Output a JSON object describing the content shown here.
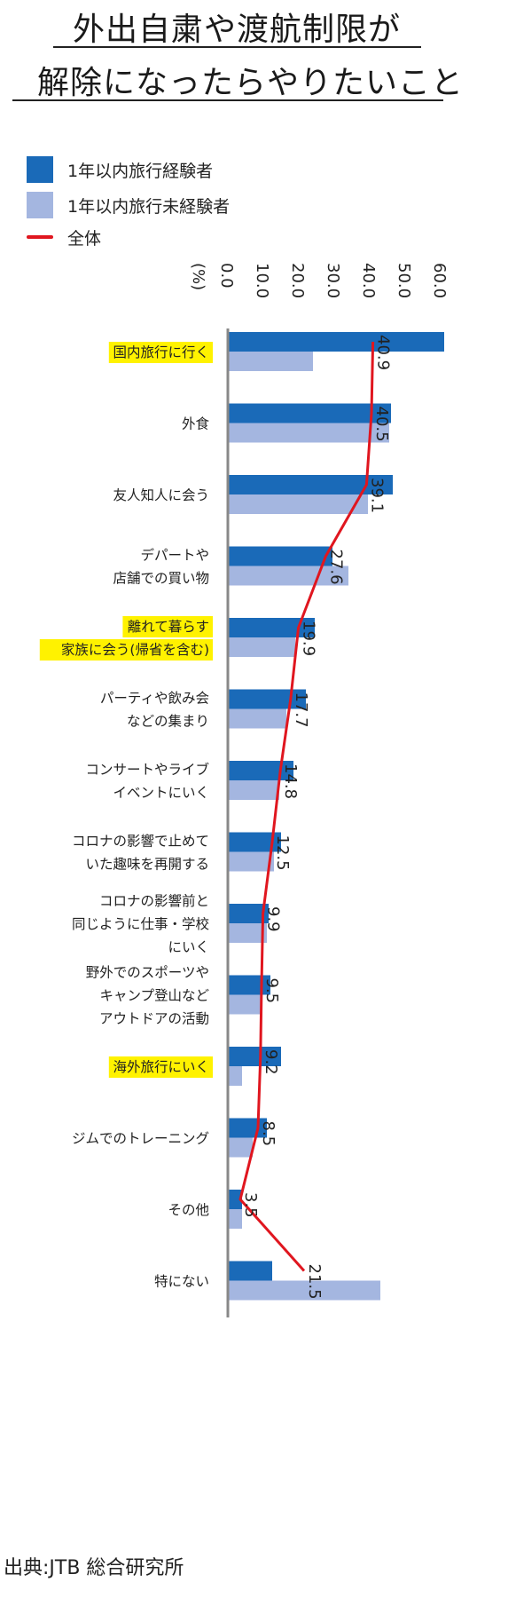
{
  "title": {
    "line1": "外出自粛や渡航制限が",
    "line2": "解除になったらやりたいこと"
  },
  "legend": {
    "experienced": "1年以内旅行経験者",
    "inexperienced": "1年以内旅行未経験者",
    "overall": "全体"
  },
  "source": "出典:JTB 総合研究所",
  "colors": {
    "experienced": "#1a6ab8",
    "inexperienced": "#a4b6e0",
    "overall": "#e0161f",
    "highlight": "#fff200",
    "axis": "#888888"
  },
  "chart_data": {
    "type": "bar",
    "orientation": "horizontal",
    "unit_label": "(%)",
    "xlim": [
      0,
      60
    ],
    "ticks": [
      "0.0",
      "10.0",
      "20.0",
      "30.0",
      "40.0",
      "50.0",
      "60.0"
    ],
    "categories": [
      {
        "label": [
          "国内旅行に行く"
        ],
        "highlight": true
      },
      {
        "label": [
          "外食"
        ],
        "highlight": false
      },
      {
        "label": [
          "友人知人に会う"
        ],
        "highlight": false
      },
      {
        "label": [
          "デパートや",
          "店舗での買い物"
        ],
        "highlight": false
      },
      {
        "label": [
          "離れて暮らす",
          "家族に会う(帰省を含む)"
        ],
        "highlight": true
      },
      {
        "label": [
          "パーティや飲み会",
          "などの集まり"
        ],
        "highlight": false
      },
      {
        "label": [
          "コンサートやライブ",
          "イベントにいく"
        ],
        "highlight": false
      },
      {
        "label": [
          "コロナの影響で止めて",
          "いた趣味を再開する"
        ],
        "highlight": false
      },
      {
        "label": [
          "コロナの影響前と",
          "同じように仕事・学校",
          "にいく"
        ],
        "highlight": false
      },
      {
        "label": [
          "野外でのスポーツや",
          "キャンプ登山など",
          "アウトドアの活動"
        ],
        "highlight": false
      },
      {
        "label": [
          "海外旅行にいく"
        ],
        "highlight": true
      },
      {
        "label": [
          "ジムでのトレーニング"
        ],
        "highlight": false
      },
      {
        "label": [
          "その他"
        ],
        "highlight": false
      },
      {
        "label": [
          "特にない"
        ],
        "highlight": false
      }
    ],
    "series": [
      {
        "name": "1年以内旅行経験者",
        "type": "bar",
        "values": [
          61.0,
          46.0,
          46.5,
          29.5,
          24.5,
          22.0,
          18.5,
          15.0,
          11.5,
          12.0,
          15.0,
          11.0,
          4.0,
          12.5
        ]
      },
      {
        "name": "1年以内旅行未経験者",
        "type": "bar",
        "values": [
          24.0,
          45.5,
          39.5,
          34.0,
          19.0,
          16.5,
          14.5,
          13.0,
          11.0,
          9.5,
          4.0,
          7.0,
          4.0,
          43.0
        ]
      },
      {
        "name": "全体",
        "type": "line",
        "values": [
          40.9,
          40.5,
          39.1,
          27.6,
          19.9,
          17.7,
          14.8,
          12.5,
          9.9,
          9.5,
          9.2,
          8.5,
          3.5,
          21.5
        ],
        "labels": [
          "40.9",
          "40.5",
          "39.1",
          "27.6",
          "19.9",
          "17.7",
          "14.8",
          "12.5",
          "9.9",
          "9.5",
          "9.2",
          "8.5",
          "3.5",
          "21.5"
        ]
      }
    ]
  }
}
